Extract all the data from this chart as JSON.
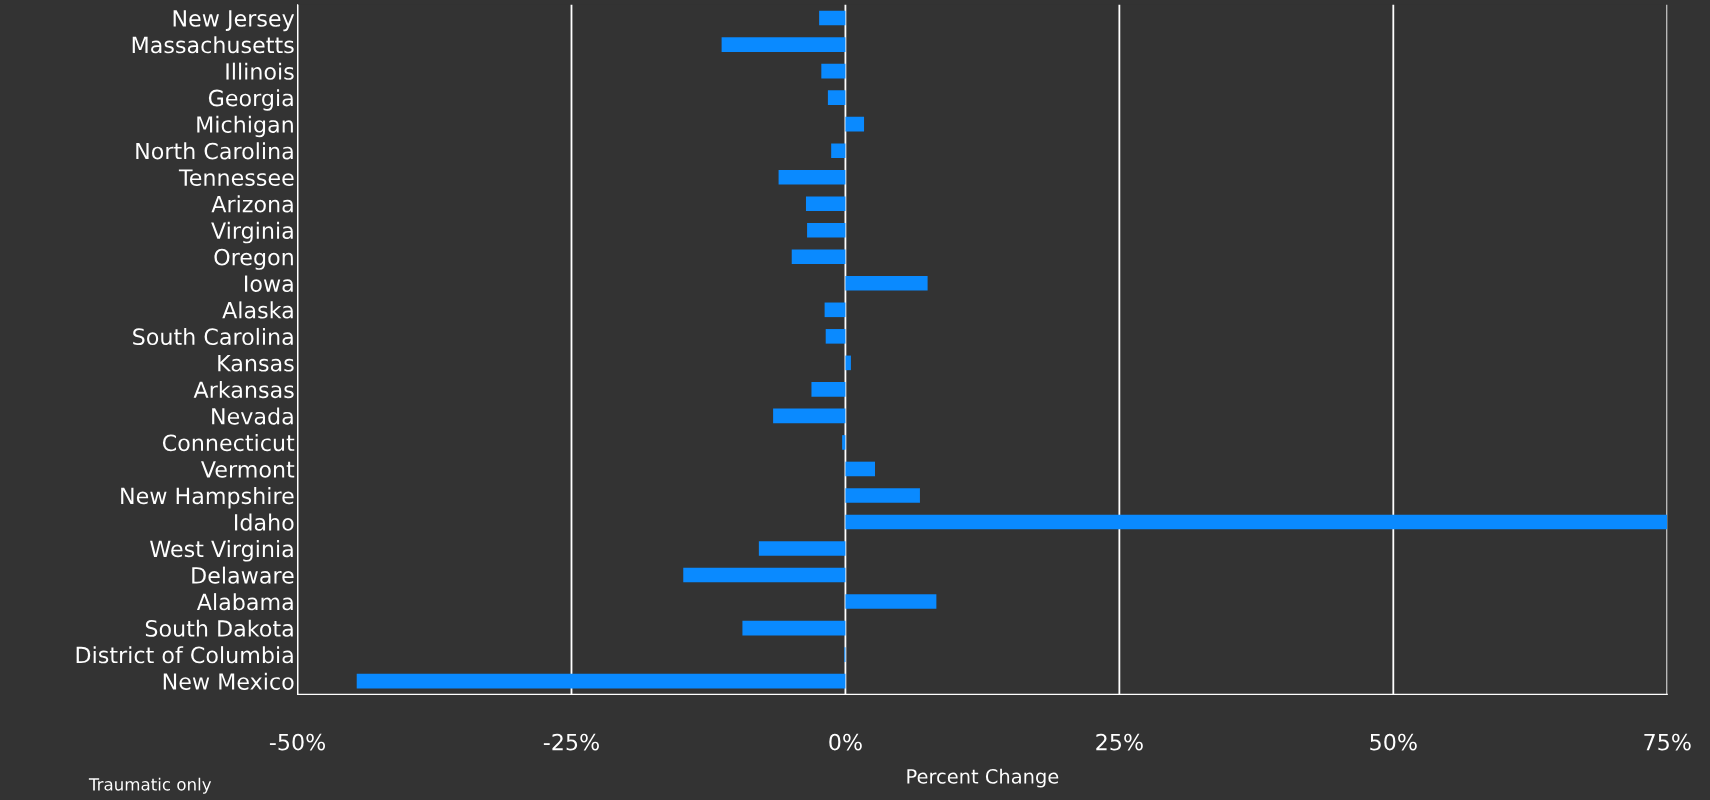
{
  "chart_data": {
    "type": "bar",
    "orientation": "horizontal",
    "xlabel": "Percent Change",
    "categories": [
      "New Jersey",
      "Massachusetts",
      "Illinois",
      "Georgia",
      "Michigan",
      "North Carolina",
      "Tennessee",
      "Arizona",
      "Virginia",
      "Oregon",
      "Iowa",
      "Alaska",
      "South Carolina",
      "Kansas",
      "Arkansas",
      "Nevada",
      "Connecticut",
      "Vermont",
      "New Hampshire",
      "Idaho",
      "West Virginia",
      "Delaware",
      "Alabama",
      "South Dakota",
      "District of Columbia",
      "New Mexico"
    ],
    "values": [
      -2.4,
      -11.3,
      -2.2,
      -1.6,
      1.7,
      -1.3,
      -6.1,
      -3.6,
      -3.5,
      -4.9,
      7.5,
      -1.9,
      -1.8,
      0.5,
      -3.1,
      -6.6,
      -0.3,
      2.7,
      6.8,
      75,
      -7.9,
      -14.8,
      8.3,
      -9.4,
      -0.1,
      -44.6
    ],
    "color": "#0a8aff",
    "xlim": [
      -50,
      75
    ],
    "xticks": [
      {
        "value": -50,
        "label": "-50%"
      },
      {
        "value": -25,
        "label": "-25%"
      },
      {
        "value": 0,
        "label": "0%"
      },
      {
        "value": 25,
        "label": "25%"
      },
      {
        "value": 50,
        "label": "50%"
      },
      {
        "value": 75,
        "label": "75%"
      }
    ],
    "grid": "x",
    "annotations": [
      "Traumatic only"
    ]
  }
}
